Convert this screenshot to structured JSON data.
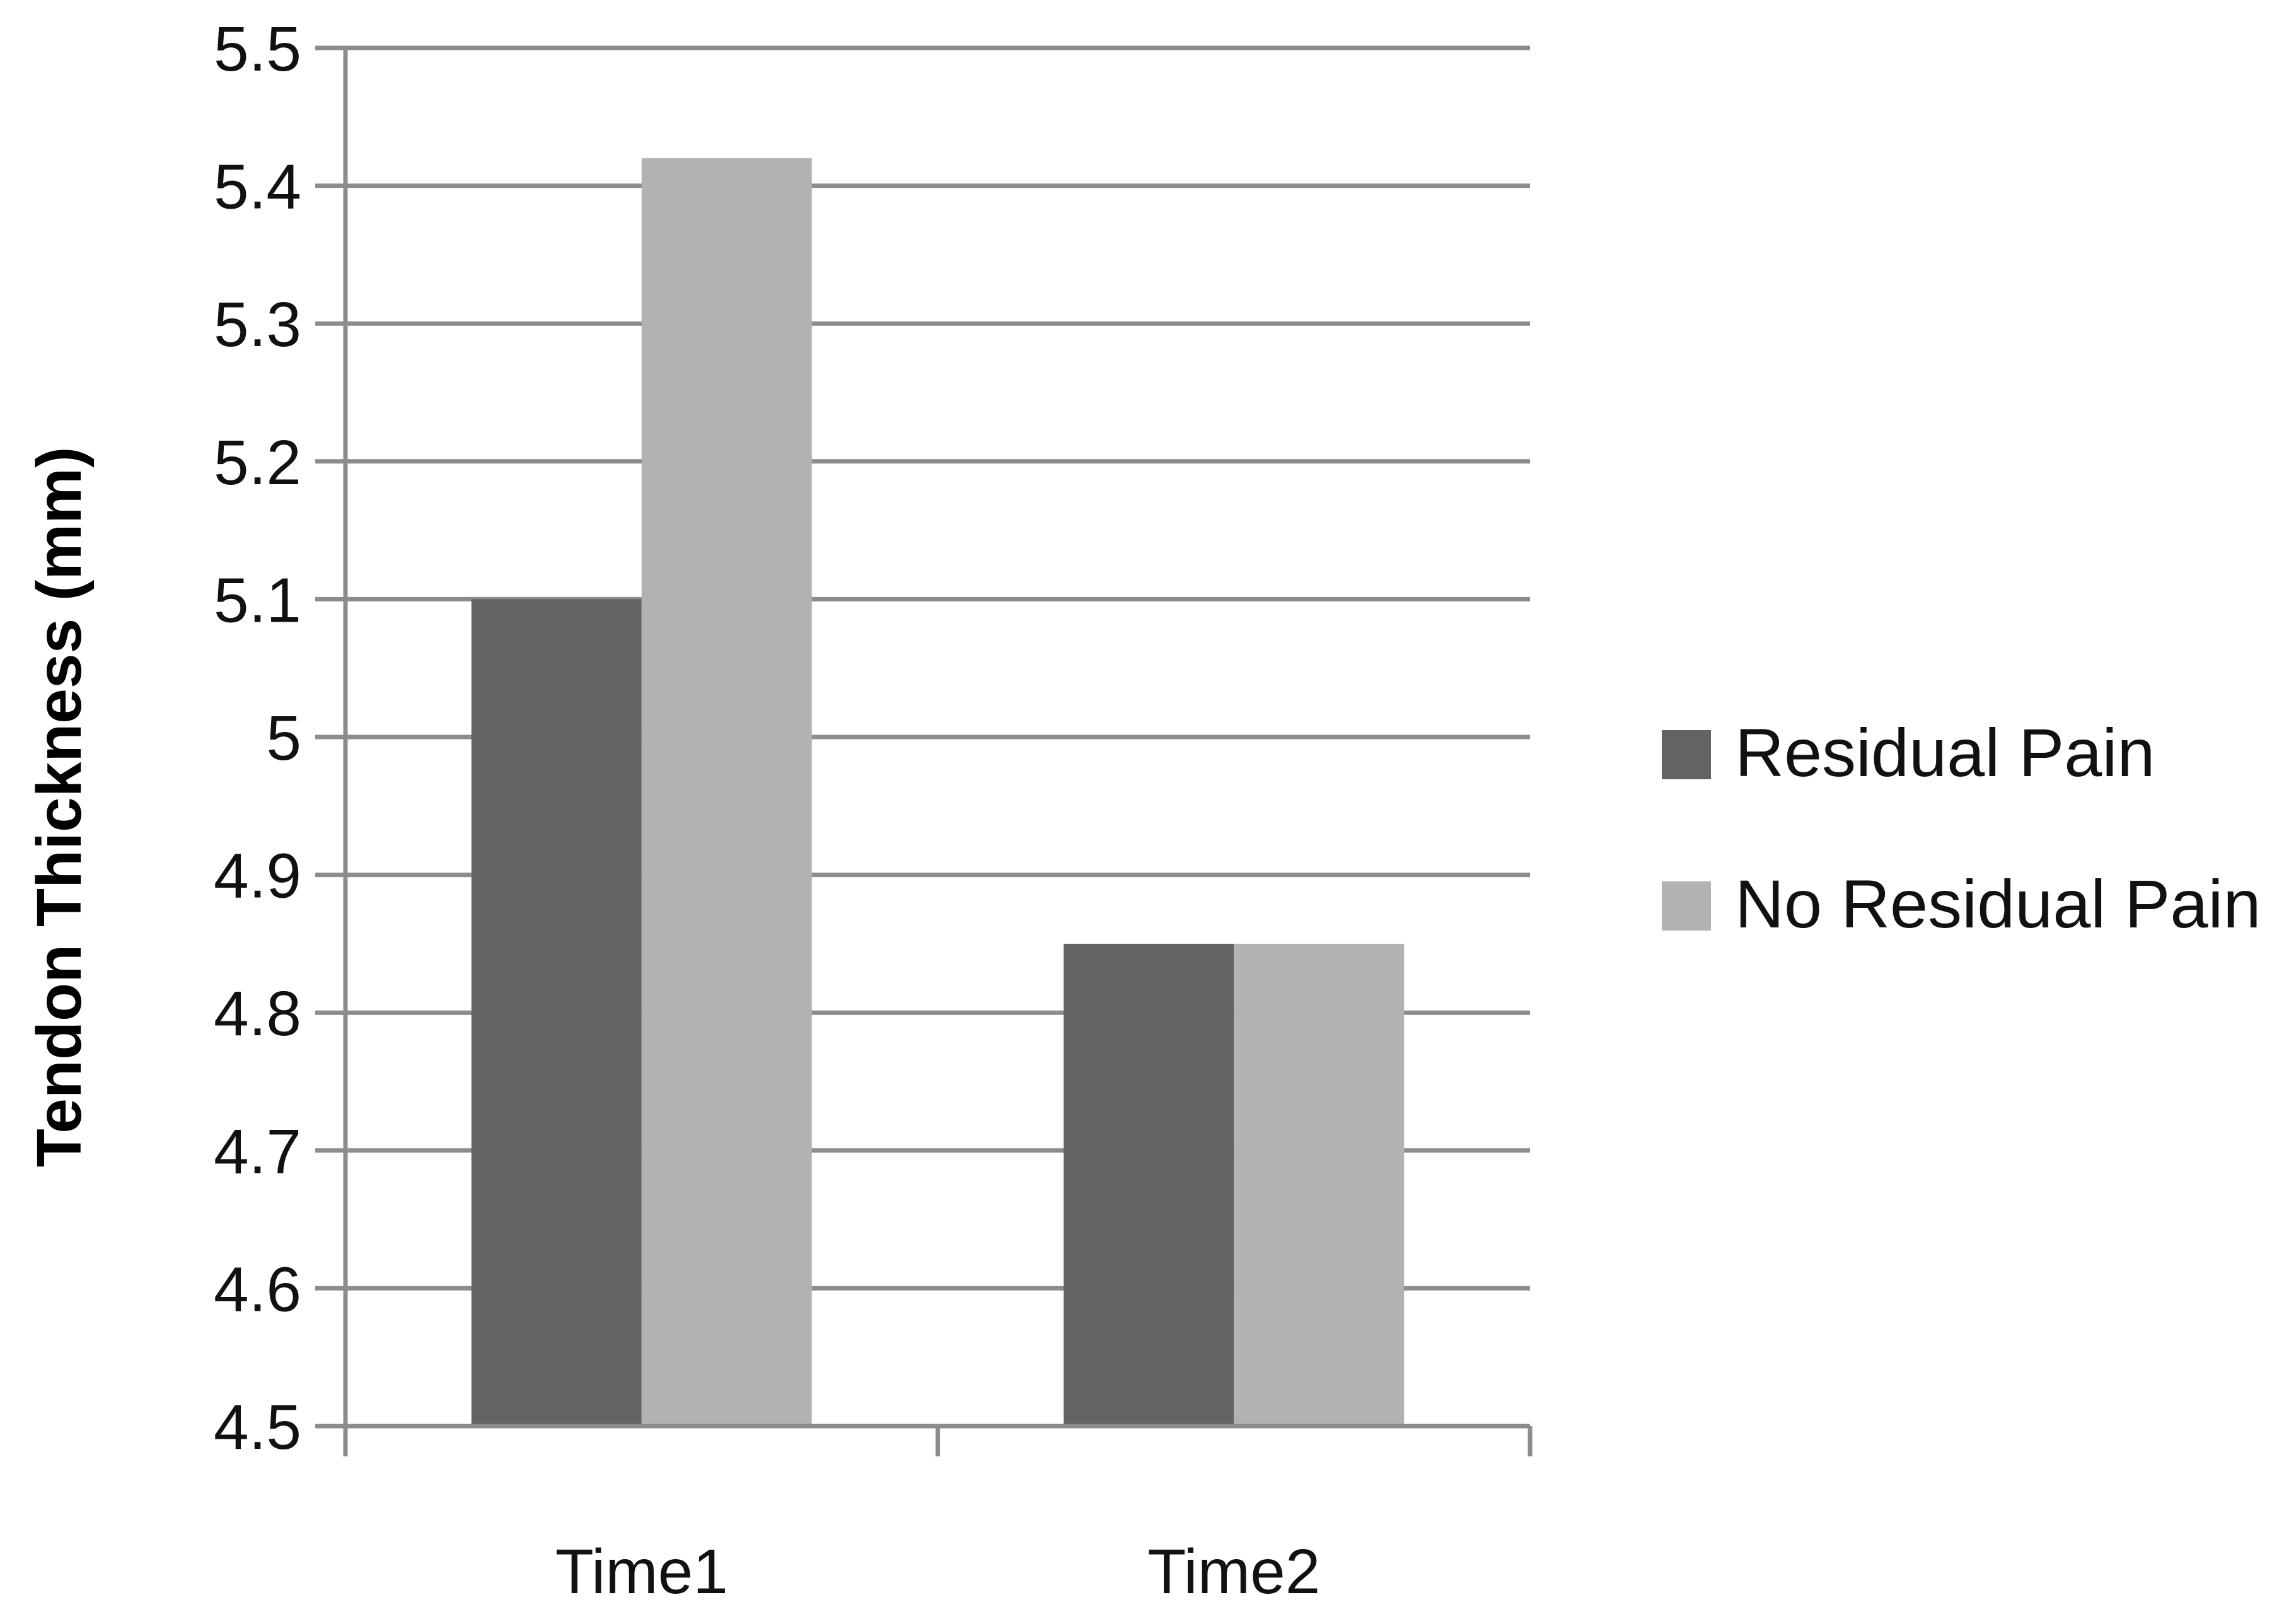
{
  "chart_data": {
    "type": "bar",
    "title": "",
    "xlabel": "",
    "ylabel": "Tendon Thickness  (mm)",
    "categories": [
      "Time1",
      "Time2"
    ],
    "series": [
      {
        "name": "Residual Pain",
        "values": [
          5.1,
          4.85
        ],
        "color": "#636363"
      },
      {
        "name": "No Residual Pain",
        "values": [
          5.42,
          4.85
        ],
        "color": "#b2b2b2"
      }
    ],
    "ylim": [
      4.5,
      5.5
    ],
    "yticks": [
      "4.5",
      "4.6",
      "4.7",
      "4.8",
      "4.9",
      "5",
      "5.1",
      "5.2",
      "5.3",
      "5.4",
      "5.5"
    ],
    "grid": true,
    "gridline_color": "#8c8c8c",
    "legend": "right"
  }
}
